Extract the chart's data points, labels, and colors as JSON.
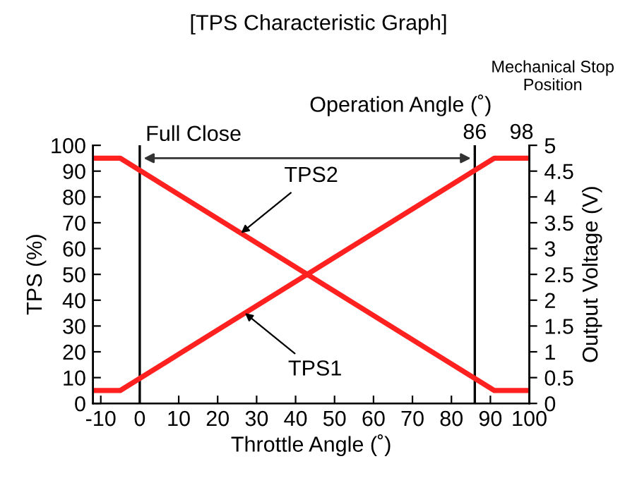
{
  "chart_data": {
    "type": "line",
    "title": "[TPS Characteristic Graph]",
    "xlabel": "Throttle Angle (˚)",
    "ylabel": "TPS (%)",
    "y2label": "Output Voltage (V)",
    "x2label": "Operation Angle (˚)",
    "series": [
      {
        "color": "#ff2020",
        "x": [
          -12,
          -5,
          91,
          100
        ],
        "values": [
          5,
          5,
          95,
          95
        ]
      },
      {
        "color": "#ff2020",
        "x": [
          -12,
          -5,
          91,
          100
        ],
        "values": [
          95,
          95,
          5,
          5
        ]
      }
    ],
    "xlim": [
      -12,
      100
    ],
    "xticks": [
      -10,
      0,
      10,
      20,
      30,
      40,
      50,
      60,
      70,
      80,
      90,
      100
    ],
    "x2lim": [
      -12,
      100
    ],
    "x2ticks": [
      86,
      98
    ],
    "ylim": [
      0,
      100
    ],
    "yticks": [
      0,
      10,
      20,
      30,
      40,
      50,
      60,
      70,
      80,
      90,
      100
    ],
    "y2lim": [
      0,
      5
    ],
    "y2ticks": [
      0,
      0.5,
      1,
      1.5,
      2,
      2.5,
      3,
      3.5,
      4,
      4.5,
      5
    ],
    "ref_lines": [
      {
        "axis": "x",
        "value": 0,
        "label": "Full Close",
        "color": "#000000"
      },
      {
        "axis": "x",
        "value": 86,
        "color": "#000000"
      }
    ],
    "annotations": [
      {
        "text": "TPS2",
        "x": 26,
        "y": 66
      },
      {
        "text": "TPS1",
        "x": 27,
        "y": 35
      },
      "Mechanical Stop Position"
    ],
    "grid": false,
    "marker": "none",
    "line_style": "solid"
  }
}
